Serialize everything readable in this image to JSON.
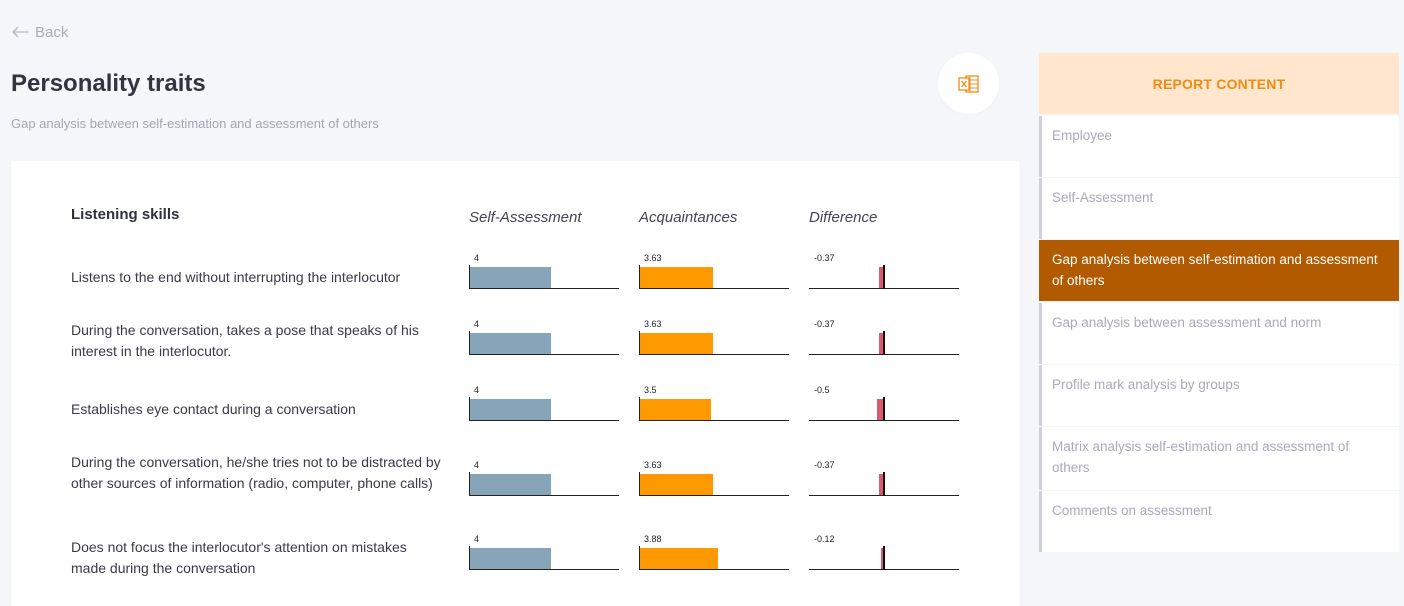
{
  "nav": {
    "back_label": "Back"
  },
  "page": {
    "title": "Personality traits",
    "subtitle": "Gap analysis between self-estimation and assessment of others"
  },
  "export": {
    "icon": "excel-icon"
  },
  "table": {
    "section_title": "Listening skills",
    "columns": [
      "Self-Assessment",
      "Acquaintances",
      "Difference"
    ],
    "scale_max": 10,
    "rows": [
      {
        "label": "Listens to the end without interrupting the interlocutor",
        "self": 4,
        "self_label": "4",
        "acq": 3.63,
        "acq_label": "3.63",
        "diff": -0.37,
        "diff_label": "-0.37"
      },
      {
        "label": "During the conversation, takes a pose that speaks of his interest in the interlocutor.",
        "self": 4,
        "self_label": "4",
        "acq": 3.63,
        "acq_label": "3.63",
        "diff": -0.37,
        "diff_label": "-0.37"
      },
      {
        "label": "Establishes eye contact during a conversation",
        "self": 4,
        "self_label": "4",
        "acq": 3.5,
        "acq_label": "3.5",
        "diff": -0.5,
        "diff_label": "-0.5"
      },
      {
        "label": "During the conversation, he/she tries not to be distracted by other sources of information (radio, computer, phone calls)",
        "self": 4,
        "self_label": "4",
        "acq": 3.63,
        "acq_label": "3.63",
        "diff": -0.37,
        "diff_label": "-0.37"
      },
      {
        "label": "Does not focus the interlocutor's attention on mistakes made during the conversation",
        "self": 4,
        "self_label": "4",
        "acq": 3.88,
        "acq_label": "3.88",
        "diff": -0.12,
        "diff_label": "-0.12"
      }
    ]
  },
  "sidebar": {
    "header": "REPORT CONTENT",
    "items": [
      {
        "label": "Employee"
      },
      {
        "label": "Self-Assessment"
      },
      {
        "label": "Gap analysis between self-estimation and assessment of others",
        "active": true
      },
      {
        "label": "Gap analysis between assessment and norm"
      },
      {
        "label": "Profile mark analysis by groups"
      },
      {
        "label": "Matrix analysis self-estimation and assessment of others"
      },
      {
        "label": "Comments on assessment"
      }
    ]
  },
  "colors": {
    "self_bar": "#87a5b8",
    "acq_bar": "#ff9900",
    "diff_bar": "#dc5a6e",
    "active_item": "#b15a00",
    "sidebar_header_bg": "#ffe6cc",
    "sidebar_header_text": "#f08c14"
  }
}
